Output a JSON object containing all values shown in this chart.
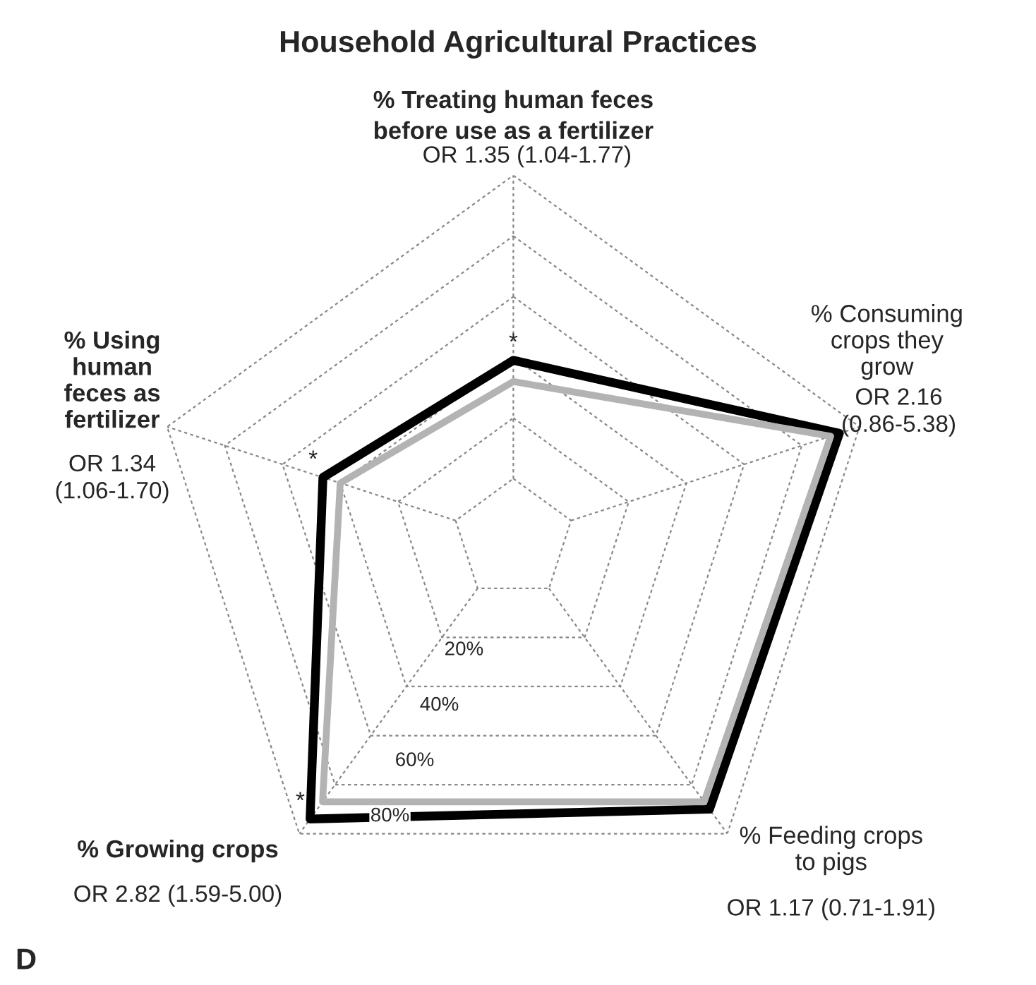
{
  "chart_data": {
    "type": "radar",
    "title": "Household Agricultural Practices",
    "categories": [
      "% Treating human feces\nbefore use as a fertilizer",
      "% Consuming\ncrops they\ngrow",
      "% Feeding crops\nto pigs",
      "% Growing crops",
      "% Using\nhuman\nfeces as\nfertilizer"
    ],
    "series": [
      {
        "color": "#000000",
        "values": [
          39,
          93,
          90,
          94,
          46
        ]
      },
      {
        "color": "#b3b3b3",
        "values": [
          32,
          90,
          87,
          87,
          40
        ]
      }
    ],
    "ylim": [
      -20,
      100
    ],
    "yticks": [
      {
        "value": 20,
        "label": "20%"
      },
      {
        "value": 40,
        "label": "40%"
      },
      {
        "value": 60,
        "label": "60%"
      },
      {
        "value": 80,
        "label": "80%"
      }
    ],
    "grid": true,
    "annotations": [
      "OR 1.35 (1.04-1.77)",
      "OR 2.16\n(0.86-5.38)",
      "OR 1.17 (0.71-1.91)",
      "OR 2.82 (1.59-5.00)",
      "OR 1.34\n(1.06-1.70)",
      "D",
      {
        "text": "*",
        "x": "% Treating human feces\nbefore use as a fertilizer"
      },
      {
        "text": "*",
        "x": "% Using\nhuman\nfeces as\nfertilizer"
      },
      {
        "text": "*",
        "x": "% Growing crops"
      }
    ]
  }
}
